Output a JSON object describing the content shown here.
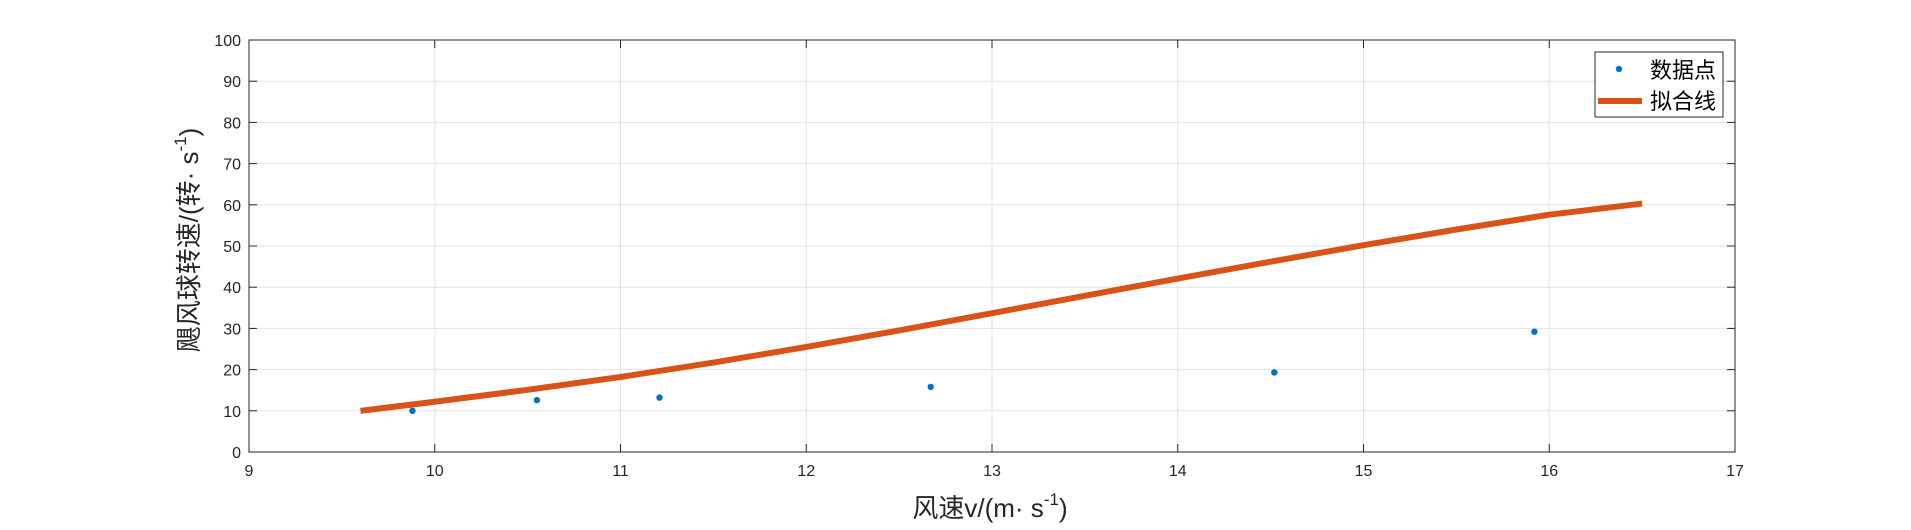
{
  "chart_data": {
    "type": "scatter",
    "xlabel": "风速v/(m· s",
    "xlabel_sup": "-1",
    "xlabel_end": ")",
    "ylabel": "飓风球转速/(转· s",
    "ylabel_sup": "-1",
    "ylabel_end": ")",
    "xlim": [
      9,
      17
    ],
    "ylim": [
      0,
      100
    ],
    "xticks": [
      9,
      10,
      11,
      12,
      13,
      14,
      15,
      16,
      17
    ],
    "yticks": [
      0,
      10,
      20,
      30,
      40,
      50,
      60,
      70,
      80,
      90,
      100
    ],
    "grid": true,
    "legend_position": "top-right",
    "series": [
      {
        "name": "数据点",
        "kind": "points",
        "color": "#0072BD",
        "x": [
          9.88,
          10.55,
          11.21,
          12.67,
          14.52,
          15.92
        ],
        "y": [
          10.0,
          12.6,
          13.2,
          15.8,
          19.3,
          29.2
        ]
      },
      {
        "name": "拟合线",
        "kind": "line",
        "color": "#D95319",
        "x": [
          9.6,
          10.0,
          10.5,
          11.0,
          11.5,
          12.0,
          12.5,
          13.0,
          13.5,
          14.0,
          14.5,
          15.0,
          15.5,
          16.0,
          16.5
        ],
        "y": [
          10.0,
          12.2,
          15.1,
          18.2,
          21.7,
          25.5,
          29.5,
          33.7,
          37.9,
          42.1,
          46.2,
          50.2,
          54.0,
          57.6,
          60.3
        ]
      }
    ]
  }
}
